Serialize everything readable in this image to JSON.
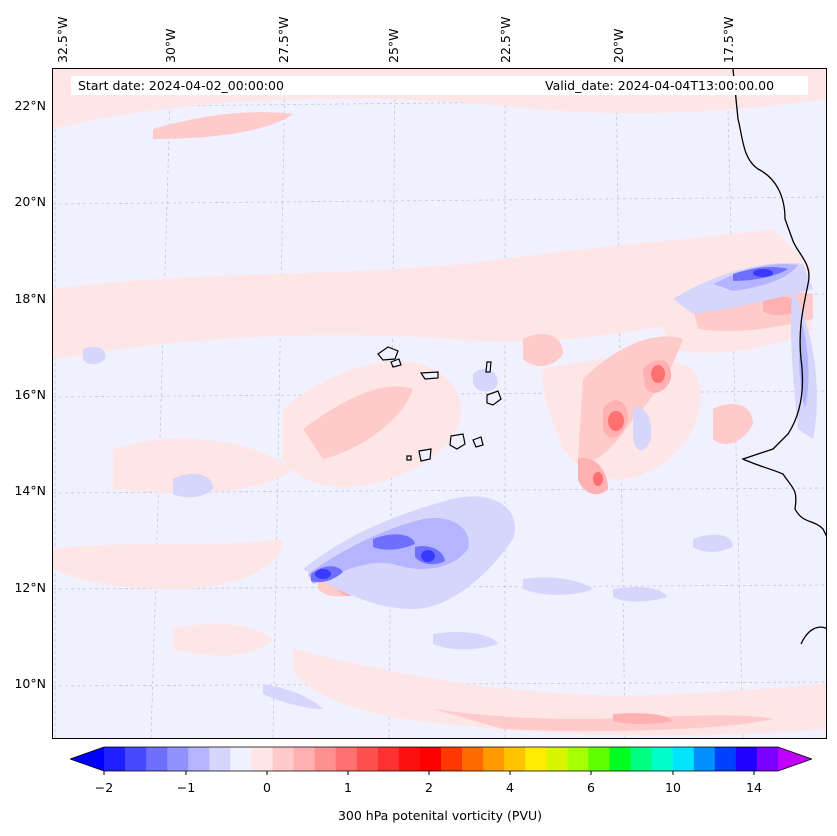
{
  "map": {
    "start_date": "Start date: 2024-04-02_00:00:00",
    "valid_date": "Valid_date: 2024-04-04T13:00:00.00",
    "lon_labels": [
      "32.5°W",
      "30°W",
      "27.5°W",
      "25°W",
      "22.5°W",
      "20°W",
      "17.5°W"
    ],
    "lat_labels": [
      "22°N",
      "20°N",
      "18°N",
      "16°N",
      "14°N",
      "12°N",
      "10°N"
    ]
  },
  "colorbar": {
    "label": "300 hPa potenital vorticity (PVU)",
    "ticks": [
      "−2",
      "−1",
      "0",
      "1",
      "2",
      "4",
      "6",
      "10",
      "14"
    ],
    "colors": [
      "#0000ff",
      "#2020ff",
      "#4848ff",
      "#6e6eff",
      "#9292ff",
      "#b4b4ff",
      "#d6d6fd",
      "#f0f0fe",
      "#ffe6e6",
      "#ffcaca",
      "#ffb0b0",
      "#ff9090",
      "#ff7070",
      "#ff5050",
      "#ff3030",
      "#ff1010",
      "#ff0000",
      "#ff3800",
      "#ff6a00",
      "#ff9a00",
      "#ffc400",
      "#ffec00",
      "#d8f400",
      "#a6ff00",
      "#60ff00",
      "#00ff20",
      "#00ff80",
      "#00ffc8",
      "#00e4ff",
      "#0090ff",
      "#0040ff",
      "#2000ff",
      "#7a00ff",
      "#c000ff"
    ]
  }
}
